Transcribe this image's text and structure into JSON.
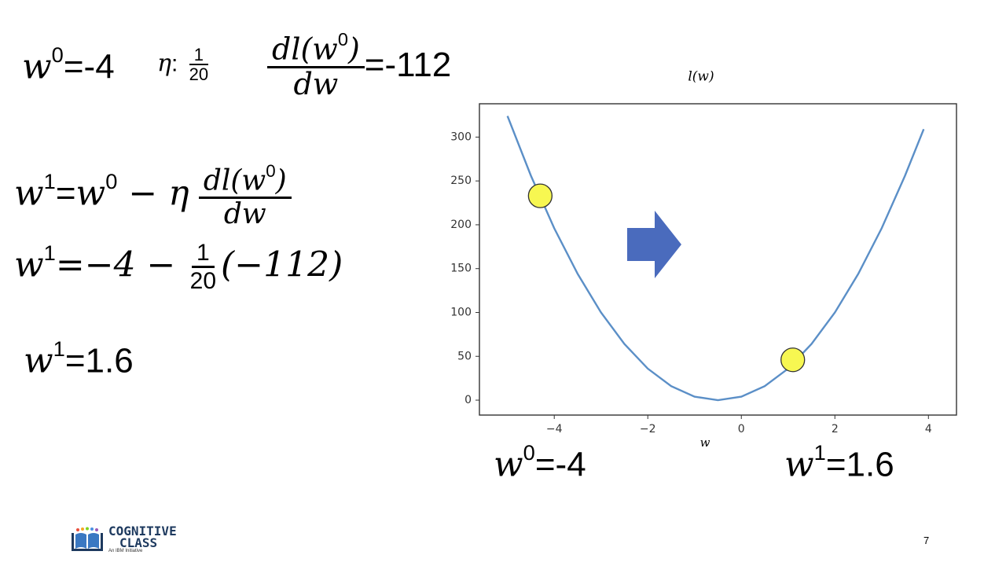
{
  "eq_top": {
    "w0_sym": "w",
    "w0_sup": "0",
    "w0_val": "=-4",
    "eta_sym": "η",
    "eta_colon": ":",
    "eta_num": "1",
    "eta_den": "20",
    "grad_num": "dl(w",
    "grad_num_sup": "0",
    "grad_num_close": ")",
    "grad_den": "dw",
    "grad_val": "=-112"
  },
  "eq_update": {
    "lhs_sym": "w",
    "lhs_sup": "1",
    "equals": "=",
    "rhs_sym": "w",
    "rhs_sup": "0",
    "minus_eta": " − η",
    "frac_num": "dl(w",
    "frac_num_sup": "0",
    "frac_num_close": ")",
    "frac_den": "dw"
  },
  "eq_sub": {
    "lhs_sym": "w",
    "lhs_sup": "1",
    "rhs_start": "=−4 −",
    "frac_num": "1",
    "frac_den": "20",
    "rhs_end": "(−112)"
  },
  "eq_result": {
    "sym": "w",
    "sup": "1",
    "val": "=1.6"
  },
  "below_chart": {
    "left_sym": "w",
    "left_sup": "0",
    "left_val": "=-4",
    "right_sym": "w",
    "right_sup": "1",
    "right_val": "=1.6"
  },
  "page_number": "7",
  "logo": {
    "line1": "COGNITIVE",
    "line2": "CLASS",
    "tagline": "An IBM Initiative"
  },
  "colors": {
    "curve": "#5b8fc7",
    "point_fill": "#f7f751",
    "arrow": "#4a6bbd"
  },
  "chart_data": {
    "type": "line",
    "title": "l(w)",
    "xlabel": "w",
    "ylabel": "",
    "xlim": [
      -5.6,
      4.6
    ],
    "ylim": [
      -17,
      338
    ],
    "xticks": [
      -4,
      -2,
      0,
      2,
      4
    ],
    "xtick_labels": [
      "−4",
      "−2",
      "0",
      "2",
      "4"
    ],
    "yticks": [
      0,
      50,
      100,
      150,
      200,
      250,
      300
    ],
    "yticks_labels": [
      "0",
      "50",
      "100",
      "150",
      "200",
      "250",
      "300"
    ],
    "grid": false,
    "legend": "none",
    "series": [
      {
        "x": [
          -5.0,
          -4.5,
          -4.0,
          -3.5,
          -3.0,
          -2.5,
          -2.0,
          -1.5,
          -1.0,
          -0.5,
          0.0,
          0.5,
          1.0,
          1.5,
          2.0,
          2.5,
          3.0,
          3.5,
          3.9
        ],
        "y": [
          324,
          256,
          196,
          144,
          100,
          64,
          36,
          16,
          4,
          0,
          4,
          16,
          36,
          64,
          100,
          144,
          196,
          256,
          309
        ]
      }
    ],
    "points": [
      {
        "x": -4.3,
        "y": 233
      },
      {
        "x": 1.1,
        "y": 46
      }
    ],
    "arrow_direction": "right"
  }
}
